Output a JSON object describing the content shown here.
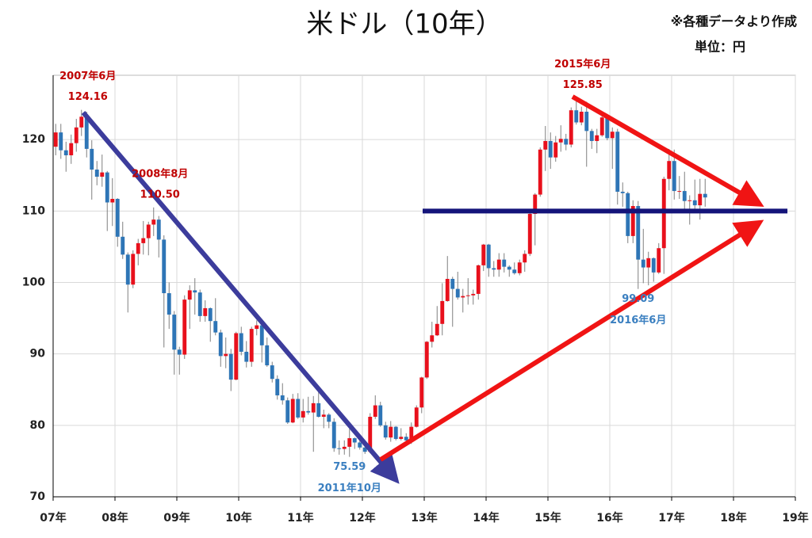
{
  "chart_data": {
    "type": "candlestick",
    "title": "米ドル（10年）",
    "note": "※各種データより作成",
    "unit": "単位：円",
    "x": [
      0.5,
      1.5,
      2.5,
      3.5,
      4.5,
      5.5,
      6.5,
      7.5,
      8.5,
      9.5,
      10.5,
      11.5,
      12.5,
      13.5,
      14.5,
      15.5,
      16.5,
      17.5,
      18.5,
      19.5,
      20.5,
      21.5,
      22.5,
      23.5,
      24.5,
      25.5,
      26.5,
      27.5,
      28.5,
      29.5,
      30.5,
      31.5,
      32.5,
      33.5,
      34.5,
      35.5,
      36.5,
      37.5,
      38.5,
      39.5,
      40.5,
      41.5,
      42.5,
      43.5,
      44.5,
      45.5,
      46.5,
      47.5,
      48.5,
      49.5,
      50.5,
      51.5,
      52.5,
      53.5,
      54.5,
      55.5,
      56.5,
      57.5,
      58.5,
      59.5,
      60.5,
      61.5,
      62.5,
      63.5,
      64.5,
      65.5,
      66.5,
      67.5,
      68.5,
      69.5,
      70.5,
      71.5,
      72.5,
      73.5,
      74.5,
      75.5,
      76.5,
      77.5,
      78.5,
      79.5,
      80.5,
      81.5,
      82.5,
      83.5,
      84.5,
      85.5,
      86.5,
      87.5,
      88.5,
      89.5,
      90.5,
      91.5,
      92.5,
      93.5,
      94.5,
      95.5,
      96.5,
      97.5,
      98.5,
      99.5,
      100.5,
      101.5,
      102.5,
      103.5,
      104.5,
      105.5,
      106.5,
      107.5,
      108.5,
      109.5,
      110.5,
      111.5,
      112.5,
      113.5,
      114.5,
      115.5,
      116.5,
      117.5,
      118.5,
      119.5,
      120.5,
      121.5,
      122.5,
      123.5,
      124.5,
      125.5,
      126.5
    ],
    "open": [
      119.0,
      121.0,
      118.5,
      117.8,
      119.5,
      121.7,
      123.2,
      118.7,
      115.8,
      114.8,
      115.4,
      111.2,
      111.7,
      106.4,
      103.9,
      99.7,
      104.0,
      105.5,
      106.2,
      108.1,
      108.8,
      106.0,
      98.5,
      95.5,
      90.6,
      89.9,
      97.6,
      98.9,
      98.6,
      95.3,
      96.4,
      94.6,
      93.0,
      89.7,
      90.0,
      86.4,
      92.9,
      90.3,
      88.9,
      93.5,
      94.0,
      91.2,
      88.4,
      86.5,
      84.2,
      83.5,
      80.4,
      83.7,
      81.1,
      82.0,
      81.8,
      83.1,
      81.2,
      81.5,
      80.5,
      76.8,
      76.7,
      77.0,
      78.2,
      77.6,
      76.9,
      76.3,
      81.2,
      82.8,
      80.0,
      78.3,
      79.8,
      78.1,
      78.4,
      77.9,
      79.8,
      82.5,
      86.7,
      91.7,
      92.6,
      94.2,
      97.4,
      100.5,
      99.1,
      97.9,
      98.1,
      98.2,
      98.4,
      102.4,
      105.3,
      102.0,
      101.8,
      103.2,
      102.2,
      101.8,
      101.3,
      102.8,
      104.0,
      109.6,
      112.3,
      118.6,
      119.8,
      117.5,
      119.6,
      120.1,
      119.3,
      124.1,
      122.4,
      123.9,
      121.2,
      119.8,
      120.6,
      123.1,
      120.2,
      121.1,
      112.7,
      112.5,
      106.5,
      110.7,
      103.2,
      102.1,
      103.4,
      101.4,
      104.8,
      114.5,
      117.0,
      112.8,
      112.8,
      111.4,
      111.5,
      110.8,
      112.4
    ],
    "high": [
      122.2,
      122.2,
      119.7,
      120.7,
      122.9,
      124.16,
      123.9,
      119.9,
      117.0,
      117.9,
      115.6,
      114.6,
      111.8,
      108.5,
      104.2,
      104.5,
      106.1,
      108.6,
      108.5,
      110.5,
      109.3,
      106.6,
      100.0,
      96.0,
      91.0,
      98.2,
      99.6,
      100.6,
      99.0,
      97.5,
      96.5,
      97.8,
      93.4,
      92.3,
      90.7,
      93.1,
      93.8,
      91.8,
      93.8,
      94.7,
      94.9,
      92.3,
      88.9,
      87.0,
      85.9,
      83.9,
      84.4,
      84.5,
      83.7,
      84.0,
      84.1,
      85.5,
      82.2,
      81.7,
      81.0,
      77.9,
      77.9,
      79.5,
      78.3,
      78.3,
      77.4,
      81.7,
      84.2,
      83.3,
      80.5,
      80.6,
      79.9,
      79.6,
      78.9,
      80.4,
      82.8,
      86.8,
      91.8,
      94.5,
      96.7,
      99.9,
      103.7,
      100.8,
      101.5,
      99.1,
      100.6,
      99.0,
      102.5,
      105.4,
      105.4,
      103.0,
      104.1,
      104.1,
      102.4,
      102.8,
      103.2,
      104.5,
      110.1,
      112.5,
      118.9,
      121.9,
      121.0,
      120.5,
      122.0,
      120.8,
      124.5,
      125.85,
      124.6,
      125.3,
      121.5,
      121.5,
      123.7,
      123.6,
      121.7,
      121.5,
      114.0,
      112.7,
      111.5,
      111.4,
      107.5,
      104.3,
      103.5,
      105.5,
      114.8,
      118.7,
      118.6,
      114.9,
      115.5,
      112.2,
      114.4,
      114.5,
      114.5
    ],
    "low": [
      117.8,
      117.3,
      115.5,
      116.6,
      118.3,
      120.5,
      117.5,
      111.6,
      113.6,
      113.4,
      107.2,
      107.9,
      105.0,
      103.3,
      95.8,
      99.2,
      102.4,
      103.9,
      103.8,
      106.5,
      103.5,
      90.9,
      93.5,
      87.1,
      87.1,
      89.3,
      93.5,
      95.5,
      94.5,
      94.5,
      91.7,
      92.6,
      88.2,
      88.0,
      84.8,
      86.3,
      89.8,
      88.1,
      88.2,
      92.6,
      88.8,
      88.2,
      86.0,
      83.6,
      82.9,
      80.2,
      80.3,
      80.9,
      80.4,
      81.5,
      76.3,
      81.1,
      79.6,
      79.6,
      76.3,
      75.9,
      75.9,
      75.59,
      76.7,
      76.6,
      76.0,
      76.1,
      80.9,
      79.8,
      78.0,
      77.7,
      77.9,
      77.9,
      77.1,
      77.4,
      79.7,
      81.7,
      86.5,
      90.9,
      92.5,
      92.6,
      97.3,
      93.8,
      97.6,
      95.8,
      96.9,
      96.9,
      97.6,
      101.6,
      100.8,
      100.8,
      100.8,
      101.4,
      100.8,
      101.1,
      101.0,
      101.5,
      103.7,
      105.2,
      112.0,
      115.6,
      115.9,
      116.9,
      118.3,
      118.5,
      118.9,
      122.1,
      122.0,
      116.2,
      118.7,
      118.1,
      120.4,
      119.9,
      115.9,
      110.9,
      110.6,
      105.5,
      105.5,
      99.09,
      99.9,
      99.6,
      100.1,
      101.2,
      101.2,
      112.9,
      111.6,
      111.7,
      110.1,
      108.1,
      110.2,
      108.8,
      110.6
    ],
    "close": [
      121.0,
      118.5,
      117.8,
      119.5,
      121.7,
      123.2,
      118.7,
      115.8,
      114.8,
      115.4,
      111.2,
      111.7,
      106.4,
      103.9,
      99.7,
      104.0,
      105.5,
      106.2,
      108.1,
      108.8,
      106.0,
      98.5,
      95.5,
      90.6,
      89.9,
      97.6,
      98.9,
      98.6,
      95.3,
      96.4,
      94.6,
      93.0,
      89.7,
      90.0,
      86.4,
      92.9,
      90.3,
      88.9,
      93.5,
      94.0,
      91.2,
      88.4,
      86.5,
      84.2,
      83.5,
      80.4,
      83.7,
      81.1,
      82.0,
      81.8,
      83.1,
      81.2,
      81.5,
      80.5,
      76.8,
      76.7,
      77.0,
      78.2,
      77.6,
      76.9,
      76.3,
      81.2,
      82.8,
      80.0,
      78.3,
      79.8,
      78.1,
      78.4,
      77.9,
      79.8,
      82.5,
      86.7,
      91.7,
      92.6,
      94.2,
      97.4,
      100.5,
      99.1,
      97.9,
      98.1,
      98.2,
      98.4,
      102.4,
      105.3,
      102.0,
      101.8,
      103.2,
      102.2,
      101.8,
      101.3,
      102.8,
      104.0,
      109.6,
      112.3,
      118.6,
      119.8,
      117.5,
      119.6,
      120.1,
      119.3,
      124.1,
      122.4,
      123.9,
      121.2,
      119.8,
      120.6,
      123.1,
      120.2,
      121.1,
      112.7,
      112.5,
      106.5,
      110.7,
      103.2,
      102.1,
      103.4,
      101.4,
      104.8,
      114.5,
      117.0,
      112.8,
      112.8,
      111.4,
      111.5,
      110.8,
      112.4,
      111.9
    ],
    "up_color": "#e8101c",
    "down_color": "#2e75b6",
    "xlim": [
      0,
      144
    ],
    "xticks": [
      {
        "value": 0,
        "label": "07年"
      },
      {
        "value": 12,
        "label": "08年"
      },
      {
        "value": 24,
        "label": "09年"
      },
      {
        "value": 36,
        "label": "10年"
      },
      {
        "value": 48,
        "label": "11年"
      },
      {
        "value": 60,
        "label": "12年"
      },
      {
        "value": 72,
        "label": "13年"
      },
      {
        "value": 84,
        "label": "14年"
      },
      {
        "value": 96,
        "label": "15年"
      },
      {
        "value": 108,
        "label": "16年"
      },
      {
        "value": 120,
        "label": "17年"
      },
      {
        "value": 132,
        "label": "18年"
      },
      {
        "value": 144,
        "label": "19年"
      }
    ],
    "ylim": [
      70,
      129
    ],
    "yticks": [
      70,
      80,
      90,
      100,
      110,
      120
    ],
    "grid": true,
    "reference_line": 110,
    "reference_color": "#14147a",
    "annotations": [
      {
        "date": "2007年6月",
        "value": 124.16,
        "color": "#c00000"
      },
      {
        "date": "2008年8月",
        "value": 110.5,
        "label": "110.50",
        "color": "#c00000"
      },
      {
        "date": "2011年10月",
        "value": 75.59,
        "color": "#3a7fc0"
      },
      {
        "date": "2015年6月",
        "value": 125.85,
        "color": "#c00000"
      },
      {
        "date": "2016年6月",
        "value": 99.09,
        "color": "#3a7fc0"
      }
    ]
  }
}
